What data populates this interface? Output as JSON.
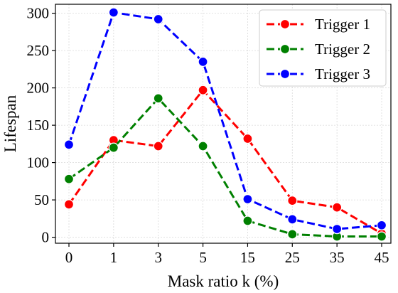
{
  "chart_data": {
    "type": "line",
    "categories": [
      "0",
      "1",
      "3",
      "5",
      "15",
      "25",
      "35",
      "45"
    ],
    "xlabel": "Mask ratio k (%)",
    "ylabel": "Lifespan",
    "ylim": [
      -8,
      312
    ],
    "yticks": [
      0,
      50,
      100,
      150,
      200,
      250,
      300
    ],
    "grid": true,
    "legend_position": "top-right",
    "series": [
      {
        "name": "Trigger 1",
        "color": "#ff0000",
        "values": [
          44,
          130,
          122,
          197,
          132,
          49,
          40,
          5
        ]
      },
      {
        "name": "Trigger 2",
        "color": "#008000",
        "values": [
          78,
          120,
          186,
          122,
          22,
          4,
          1,
          1
        ]
      },
      {
        "name": "Trigger 3",
        "color": "#0000ff",
        "values": [
          124,
          301,
          292,
          235,
          51,
          24,
          11,
          16
        ]
      }
    ]
  }
}
